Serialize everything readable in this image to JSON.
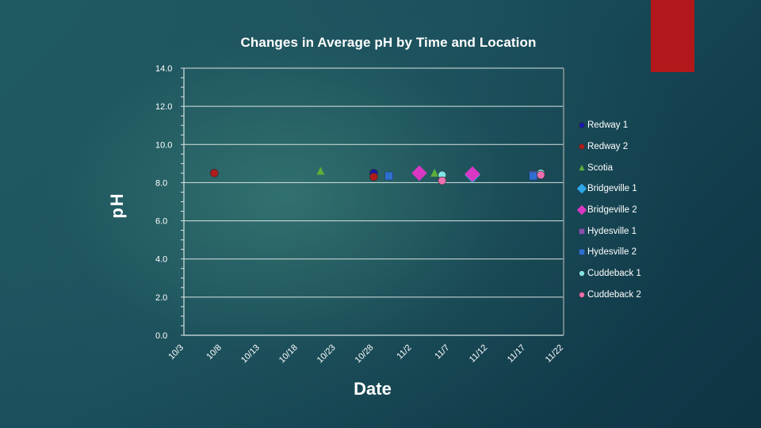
{
  "chart_data": {
    "type": "scatter",
    "title": "Changes in Average pH by Time and Location",
    "xlabel": "Date",
    "ylabel": "pH",
    "ylim": [
      0,
      14
    ],
    "xlim": [
      "2013-10-03",
      "2013-11-22"
    ],
    "x_ticks": [
      "10/3",
      "10/8",
      "10/13",
      "10/18",
      "10/23",
      "10/28",
      "11/2",
      "11/7",
      "11/12",
      "11/17",
      "11/22"
    ],
    "y_ticks": [
      "0.0",
      "2.0",
      "4.0",
      "6.0",
      "8.0",
      "10.0",
      "12.0",
      "14.0"
    ],
    "grid": "horizontal",
    "legend_position": "right",
    "series": [
      {
        "name": "Redway 1",
        "marker": "circle",
        "color": "#1a1aa8",
        "points": [
          {
            "x": "2013-10-28",
            "y": 8.5
          }
        ]
      },
      {
        "name": "Redway 2",
        "marker": "circle",
        "color": "#b01c1c",
        "points": [
          {
            "x": "2013-10-07",
            "y": 8.5
          },
          {
            "x": "2013-10-28",
            "y": 8.3
          }
        ]
      },
      {
        "name": "Scotia",
        "marker": "triangle",
        "color": "#5cae3a",
        "points": [
          {
            "x": "2013-10-21",
            "y": 8.6
          },
          {
            "x": "2013-11-05",
            "y": 8.5
          }
        ]
      },
      {
        "name": "Bridgeville 1",
        "marker": "diamond",
        "color": "#2fa6e8",
        "points": [
          {
            "x": "2013-11-10",
            "y": 8.4
          }
        ]
      },
      {
        "name": "Bridgeville 2",
        "marker": "diamond",
        "color": "#d838c4",
        "points": [
          {
            "x": "2013-11-03",
            "y": 8.5
          },
          {
            "x": "2013-11-10",
            "y": 8.45
          }
        ]
      },
      {
        "name": "Hydesville 1",
        "marker": "square",
        "color": "#8a4fa8",
        "points": [
          {
            "x": "2013-11-18",
            "y": 8.4
          }
        ]
      },
      {
        "name": "Hydesville 2",
        "marker": "square",
        "color": "#2e6fd0",
        "points": [
          {
            "x": "2013-10-30",
            "y": 8.35
          },
          {
            "x": "2013-11-18",
            "y": 8.35
          }
        ]
      },
      {
        "name": "Cuddeback 1",
        "marker": "circle",
        "color": "#7fe6e6",
        "points": [
          {
            "x": "2013-11-06",
            "y": 8.4
          },
          {
            "x": "2013-11-19",
            "y": 8.5
          }
        ]
      },
      {
        "name": "Cuddeback 2",
        "marker": "circle",
        "color": "#ee6fae",
        "points": [
          {
            "x": "2013-11-06",
            "y": 8.1
          },
          {
            "x": "2013-11-19",
            "y": 8.4
          }
        ]
      }
    ]
  },
  "colors": {
    "accent": "#b2181b",
    "axis": "#d8e4e2",
    "text": "#ffffff"
  }
}
